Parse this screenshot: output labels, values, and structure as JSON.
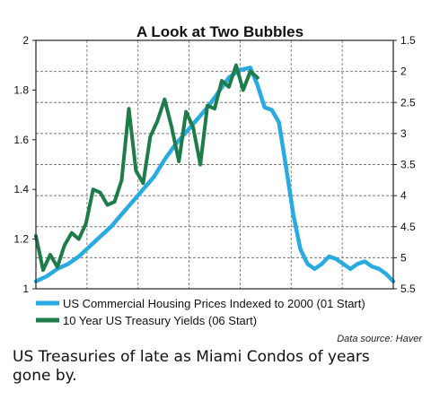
{
  "chart_data": {
    "type": "line",
    "title": "A Look at Two Bubbles",
    "source_note": "Data source: Haver",
    "grid": true,
    "legend_position": "bottom",
    "axes": {
      "left": {
        "ylim": [
          1.0,
          2.0
        ],
        "ticks": [
          "1",
          "1.2",
          "1.4",
          "1.6",
          "1.8",
          "2"
        ],
        "tick_values": [
          1.0,
          1.2,
          1.4,
          1.6,
          1.8,
          2.0
        ]
      },
      "right": {
        "ylim": [
          5.5,
          1.5
        ],
        "inverted": true,
        "ticks": [
          "1.5",
          "2",
          "2.5",
          "3",
          "3.5",
          "4",
          "4.5",
          "5",
          "5.5"
        ],
        "tick_values": [
          1.5,
          2,
          2.5,
          3,
          3.5,
          4,
          4.5,
          5,
          5.5
        ]
      },
      "x": {
        "range": [
          0,
          100
        ],
        "tick_labels_shown": false
      }
    },
    "series": [
      {
        "name": "US Commercial Housing Prices Indexed to 2000 (01 Start)",
        "axis": "left",
        "color": "#29abe2",
        "x": [
          0,
          3,
          6,
          9,
          12,
          15,
          18,
          21,
          24,
          27,
          30,
          33,
          36,
          39,
          42,
          45,
          48,
          51,
          54,
          57,
          60,
          62,
          64,
          66,
          68,
          70,
          72,
          74,
          76,
          78,
          80,
          82,
          84,
          86,
          88,
          90,
          92,
          94,
          96,
          98,
          100
        ],
        "y": [
          1.03,
          1.05,
          1.08,
          1.1,
          1.13,
          1.17,
          1.21,
          1.25,
          1.3,
          1.35,
          1.4,
          1.45,
          1.52,
          1.58,
          1.63,
          1.68,
          1.73,
          1.79,
          1.85,
          1.88,
          1.89,
          1.82,
          1.73,
          1.72,
          1.67,
          1.49,
          1.3,
          1.16,
          1.1,
          1.08,
          1.1,
          1.13,
          1.12,
          1.1,
          1.08,
          1.1,
          1.11,
          1.09,
          1.08,
          1.06,
          1.03
        ]
      },
      {
        "name": "10 Year US Treasury Yields (06 Start)",
        "axis": "right",
        "color": "#1e7b4a",
        "x": [
          0,
          2,
          4,
          6,
          8,
          10,
          12,
          14,
          16,
          18,
          20,
          22,
          24,
          26,
          28,
          30,
          32,
          34,
          36,
          38,
          40,
          42,
          44,
          46,
          48,
          50,
          52,
          54,
          56,
          58,
          60,
          62
        ],
        "y": [
          4.65,
          5.2,
          4.95,
          5.15,
          4.8,
          4.6,
          4.7,
          4.45,
          3.9,
          3.95,
          4.15,
          4.1,
          3.75,
          2.6,
          3.6,
          3.8,
          3.05,
          2.8,
          2.45,
          2.9,
          3.45,
          2.65,
          2.9,
          3.5,
          2.55,
          2.6,
          2.15,
          2.25,
          1.9,
          2.3,
          2.0,
          2.1
        ]
      }
    ]
  }
}
